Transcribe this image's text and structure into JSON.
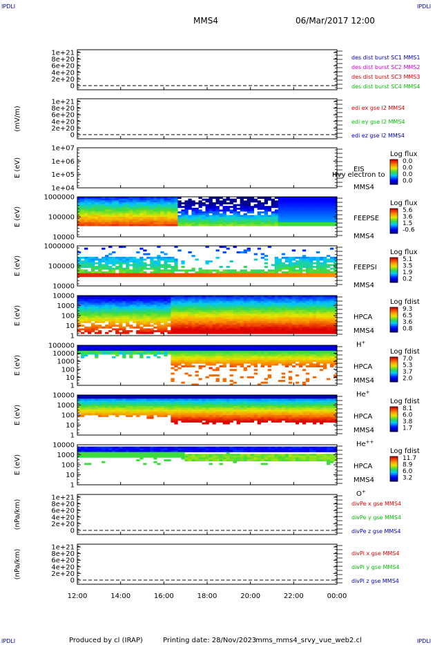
{
  "corner_labels": {
    "top_left": "IPDLI",
    "top_right": "IPDLI",
    "bottom_left": "IPDLI",
    "bottom_right": "IPDLI"
  },
  "header": {
    "spacecraft": "MMS4",
    "date": "06/Mar/2017 12:00"
  },
  "footer": {
    "produced_by": "Produced by cl (IRAP)",
    "printing_date": "Printing date: 28/Nov/2023",
    "script": "mms_mms4_srvy_vue_web2.cl"
  },
  "colors": {
    "red": "#e00000",
    "magenta": "#d000d0",
    "green": "#00c000",
    "blue": "#0000c0"
  },
  "chart_data": [
    {
      "id": "des_dist",
      "type": "line",
      "ylabel": "",
      "yticks": [
        "1e+21",
        "8e+20",
        "6e+20",
        "4e+20",
        "2e+20",
        "0"
      ],
      "ylim": [
        0,
        1e+21
      ],
      "legend": [
        {
          "text": "des dist burst SC1 MMS1",
          "color": "#0000c0"
        },
        {
          "text": "des dist burst SC2 MMS2",
          "color": "#d000d0"
        },
        {
          "text": "des dist burst SC3 MMS3",
          "color": "#e00000"
        },
        {
          "text": "des dist burst SC4 MMS4",
          "color": "#00c000"
        }
      ]
    },
    {
      "id": "edi",
      "type": "line",
      "ylabel": "(mV/m)",
      "yticks": [
        "1e+21",
        "8e+20",
        "6e+20",
        "4e+20",
        "2e+20",
        "0"
      ],
      "ylim": [
        0,
        1e+21
      ],
      "legend": [
        {
          "text": "edi ex gse l2 MMS4",
          "color": "#e00000"
        },
        {
          "text": "edi ey gse l2 MMS4",
          "color": "#00c000"
        },
        {
          "text": "edi ez gse l2 MMS4",
          "color": "#0000c0"
        }
      ]
    },
    {
      "id": "eis",
      "type": "heatmap",
      "ylabel": "E (eV)",
      "yticks": [
        "1e+07",
        "1e+06",
        "1e+05",
        "1e+04"
      ],
      "ylim": [
        10000,
        10000000
      ],
      "yscale": "log",
      "instrument": "EIS",
      "instrument_overlap": "Hvy electron to",
      "spacecraft": "MMS4",
      "colorbar_label": "Log flux",
      "colorbar_ticks": [
        "0.0",
        "0.0",
        "0.0",
        "0.0"
      ],
      "empty": true
    },
    {
      "id": "feepse",
      "type": "heatmap",
      "ylabel": "E (eV)",
      "yticks": [
        "1000000",
        "100000",
        "10000"
      ],
      "ylim": [
        10000,
        1000000
      ],
      "yscale": "log",
      "instrument": "FEEPSE",
      "spacecraft": "MMS4",
      "colorbar_label": "Log flux",
      "colorbar_ticks": [
        "5.6",
        "3.6",
        "1.5",
        "-0.6"
      ],
      "empty": false
    },
    {
      "id": "feepsi",
      "type": "heatmap",
      "ylabel": "E (eV)",
      "yticks": [
        "1000000",
        "100000",
        "10000"
      ],
      "ylim": [
        10000,
        1000000
      ],
      "yscale": "log",
      "instrument": "FEEPSI",
      "spacecraft": "MMS4",
      "colorbar_label": "Log flux",
      "colorbar_ticks": [
        "5.1",
        "3.5",
        "1.9",
        "0.2"
      ],
      "empty": false
    },
    {
      "id": "hpca_h",
      "type": "heatmap",
      "ylabel": "E (eV)",
      "yticks": [
        "10000",
        "1000",
        "100",
        "10",
        "1"
      ],
      "ylim": [
        1,
        40000
      ],
      "yscale": "log",
      "instrument": "HPCA",
      "spacecraft": "MMS4",
      "species": "H",
      "species_charge": "+",
      "colorbar_label": "Log fdist",
      "colorbar_ticks": [
        "9.3",
        "6.5",
        "3.6",
        "0.8"
      ],
      "empty": false
    },
    {
      "id": "hpca_he1",
      "type": "heatmap",
      "ylabel": "E (eV)",
      "yticks": [
        "100000",
        "10000",
        "1000",
        "100",
        "10",
        "1"
      ],
      "ylim": [
        1,
        100000
      ],
      "yscale": "log",
      "instrument": "HPCA",
      "spacecraft": "MMS4",
      "species": "He",
      "species_charge": "+",
      "colorbar_label": "Log fdist",
      "colorbar_ticks": [
        "7.0",
        "5.3",
        "3.7",
        "2.0"
      ],
      "empty": false
    },
    {
      "id": "hpca_he2",
      "type": "heatmap",
      "ylabel": "E (eV)",
      "yticks": [
        "10000",
        "1000",
        "100",
        "10",
        "1"
      ],
      "ylim": [
        1,
        40000
      ],
      "yscale": "log",
      "instrument": "HPCA",
      "spacecraft": "MMS4",
      "species": "He",
      "species_charge": "++",
      "colorbar_label": "Log fdist",
      "colorbar_ticks": [
        "8.1",
        "6.0",
        "3.8",
        "1.7"
      ],
      "empty": false
    },
    {
      "id": "hpca_o",
      "type": "heatmap",
      "ylabel": "E (eV)",
      "yticks": [
        "10000",
        "1000",
        "100",
        "10",
        "1"
      ],
      "ylim": [
        1,
        40000
      ],
      "yscale": "log",
      "instrument": "HPCA",
      "spacecraft": "MMS4",
      "species": "O",
      "species_charge": "+",
      "colorbar_label": "Log fdist",
      "colorbar_ticks": [
        "11.7",
        "8.9",
        "6.0",
        "3.2"
      ],
      "empty": false
    },
    {
      "id": "dive",
      "type": "line",
      "ylabel": "(nPa/km)",
      "yticks": [
        "1e+21",
        "8e+20",
        "6e+20",
        "4e+20",
        "2e+20",
        "0"
      ],
      "ylim": [
        0,
        1e+21
      ],
      "legend": [
        {
          "text": "divPe x gse MMS4",
          "color": "#e00000"
        },
        {
          "text": "divPe y gse MMS4",
          "color": "#00c000"
        },
        {
          "text": "divPe z gse MMS4",
          "color": "#0000c0"
        }
      ]
    },
    {
      "id": "divi",
      "type": "line",
      "ylabel": "(nPa/km)",
      "yticks": [
        "1e+21",
        "8e+20",
        "6e+20",
        "4e+20",
        "2e+20",
        "0"
      ],
      "ylim": [
        0,
        1e+21
      ],
      "legend": [
        {
          "text": "divPi x gse MMS4",
          "color": "#e00000"
        },
        {
          "text": "divPi y gse MMS4",
          "color": "#00c000"
        },
        {
          "text": "divPi z gse MMS4",
          "color": "#0000c0"
        }
      ]
    }
  ],
  "x_axis": {
    "ticks": [
      "12:00",
      "14:00",
      "16:00",
      "18:00",
      "20:00",
      "22:00",
      "00:00"
    ]
  }
}
